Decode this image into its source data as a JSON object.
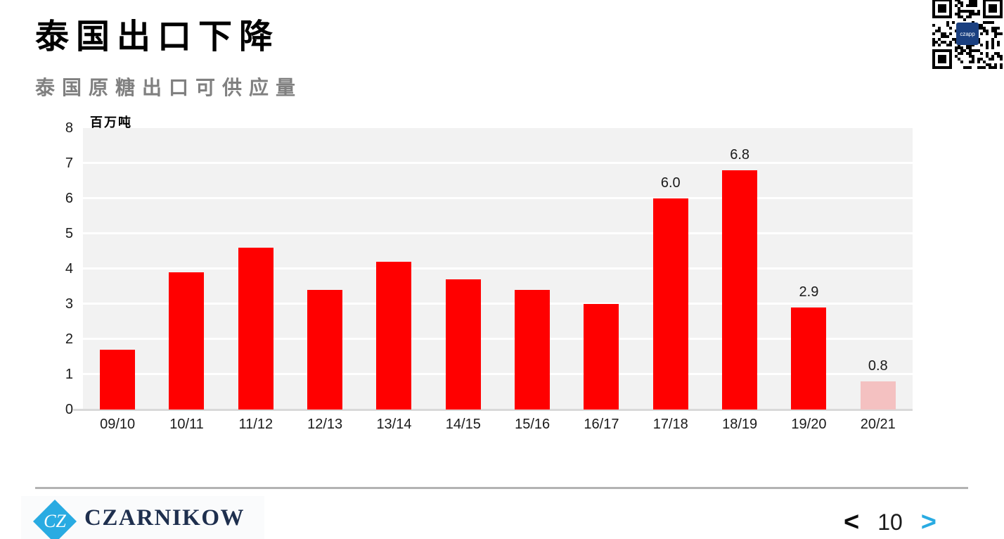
{
  "slide": {
    "title": "泰国出口下降"
  },
  "chart_data": {
    "type": "bar",
    "title": "泰国原糖出口可供应量",
    "unit_label": "百万吨",
    "categories": [
      "09/10",
      "10/11",
      "11/12",
      "12/13",
      "13/14",
      "14/15",
      "15/16",
      "16/17",
      "17/18",
      "18/19",
      "19/20",
      "20/21"
    ],
    "values": [
      1.7,
      3.9,
      4.6,
      3.4,
      4.2,
      3.7,
      3.4,
      3.0,
      6.0,
      6.8,
      2.9,
      0.8
    ],
    "data_labels": [
      "",
      "",
      "",
      "",
      "",
      "",
      "",
      "",
      "6.0",
      "6.8",
      "2.9",
      "0.8"
    ],
    "ylim": [
      0,
      8
    ],
    "yticks": [
      0,
      1,
      2,
      3,
      4,
      5,
      6,
      7,
      8
    ],
    "grid": "horizontal-white-on-gray",
    "legend": "none",
    "bar_color": "#FF0000",
    "highlight_color": "#F4C1C1",
    "highlight_index": 11,
    "plot_bg": "#F2F2F2"
  },
  "qr": {
    "center_label": "czapp"
  },
  "footer": {
    "logo_monogram": "CZ",
    "logo_text": "CZARNIKOW",
    "logo_cyan": "#29ABE2",
    "logo_navy": "#1E2F4E",
    "prev_label": "<",
    "page_number": "10",
    "next_label": ">"
  }
}
